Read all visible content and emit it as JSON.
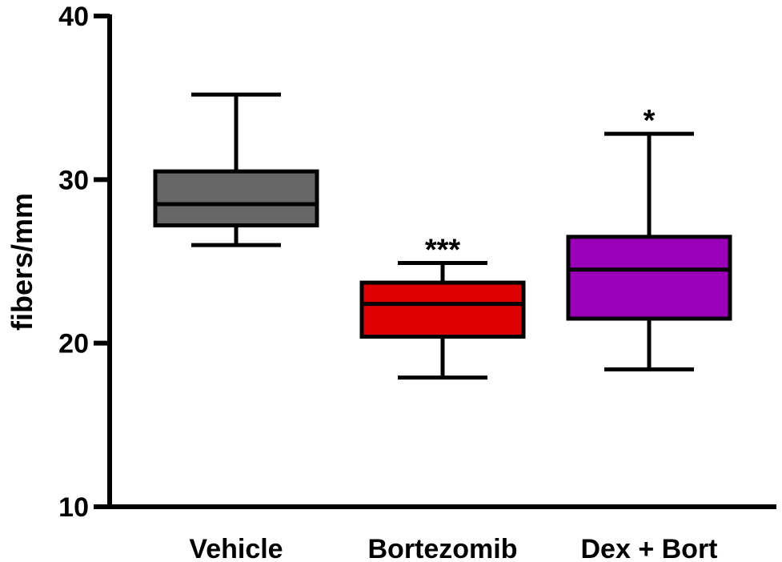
{
  "chart_data": {
    "type": "box",
    "title": "",
    "xlabel": "",
    "ylabel": "fibers/mm",
    "ylim": [
      10,
      40
    ],
    "yticks": [
      10,
      20,
      30,
      40
    ],
    "grid": false,
    "categories": [
      "Vehicle",
      "Bortezomib",
      "Dex + Bort"
    ],
    "boxes": [
      {
        "category": "Vehicle",
        "min": 26.0,
        "q1": 27.2,
        "median": 28.5,
        "q3": 30.5,
        "max": 35.2,
        "color": "#666666",
        "annotation": ""
      },
      {
        "category": "Bortezomib",
        "min": 17.9,
        "q1": 20.4,
        "median": 22.4,
        "q3": 23.7,
        "max": 24.9,
        "color": "#dd0000",
        "annotation": "***"
      },
      {
        "category": "Dex + Bort",
        "min": 18.4,
        "q1": 21.5,
        "median": 24.5,
        "q3": 26.5,
        "max": 32.8,
        "color": "#9b00b8",
        "annotation": "*"
      }
    ]
  }
}
